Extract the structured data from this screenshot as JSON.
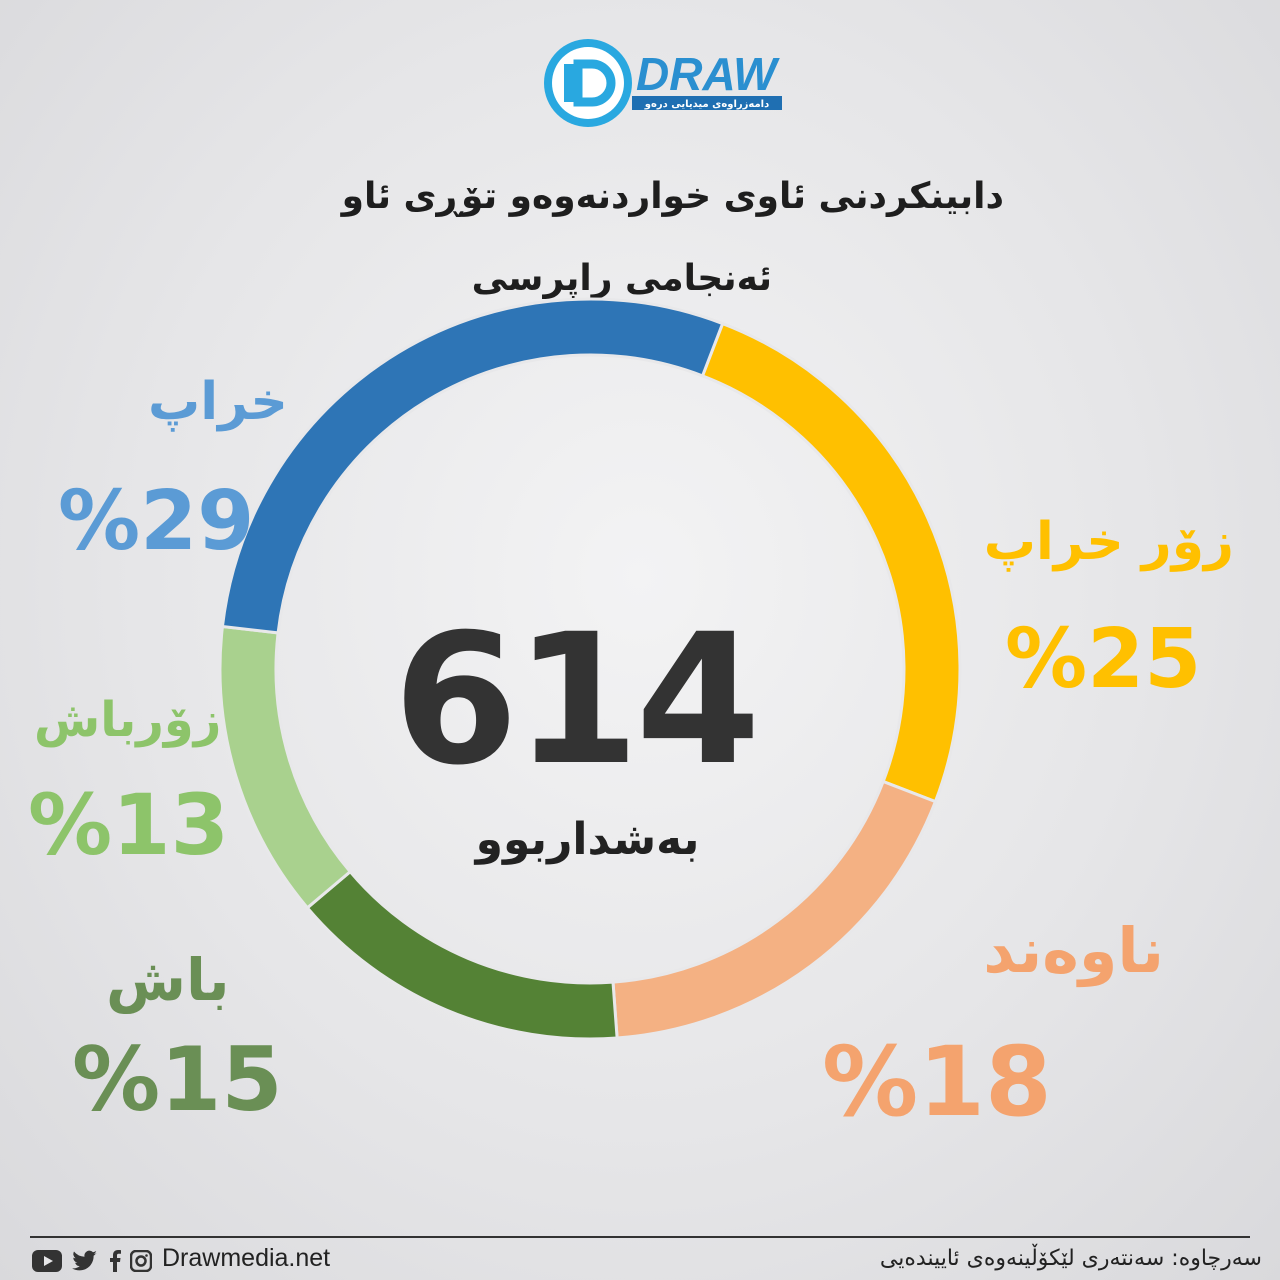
{
  "logo": {
    "brand": "DRAW",
    "tagline": "دامەزراوەی میدیایی درەو"
  },
  "title": {
    "line1": "دابینکردنی ئاوی خواردنەوەو تۆڕی ئاو",
    "line2": "ئەنجامی راپرسی"
  },
  "center": {
    "total": "614",
    "label": "بەشداربوو"
  },
  "chart_data": {
    "type": "pie",
    "title": "دابینکردنی ئاوی خواردنەوەو تۆڕی ئاو",
    "total": 614,
    "slices": [
      {
        "name": "زۆر خراپ",
        "value": 25,
        "label": "%25",
        "color": "#ffc000"
      },
      {
        "name": "ناوەند",
        "value": 18,
        "label": "%18",
        "color": "#f4b183"
      },
      {
        "name": "باش",
        "value": 15,
        "label": "%15",
        "color": "#548235"
      },
      {
        "name": "زۆرباش",
        "value": 13,
        "label": "%13",
        "color": "#a9d18e"
      },
      {
        "name": "خراپ",
        "value": 29,
        "label": "%29",
        "color": "#2e75b6"
      }
    ]
  },
  "labels": {
    "very_bad": {
      "name": "زۆر خراپ",
      "pct": "%25",
      "color": "#ffc000"
    },
    "average": {
      "name": "ناوەند",
      "pct": "%18",
      "color": "#f4a36e"
    },
    "good": {
      "name": "باش",
      "pct": "%15",
      "color": "#6a8f55"
    },
    "very_good": {
      "name": "زۆرباش",
      "pct": "%13",
      "color": "#8dc46a"
    },
    "bad": {
      "name": "خراپ",
      "pct": "%29",
      "color": "#5b9bd5"
    }
  },
  "footer": {
    "website": "Drawmedia.net",
    "source": "سەرچاوە: سەنتەری لێکۆڵینەوەی ئاییندەیی",
    "social_icons": [
      "youtube-icon",
      "twitter-icon",
      "facebook-icon",
      "instagram-icon"
    ]
  }
}
